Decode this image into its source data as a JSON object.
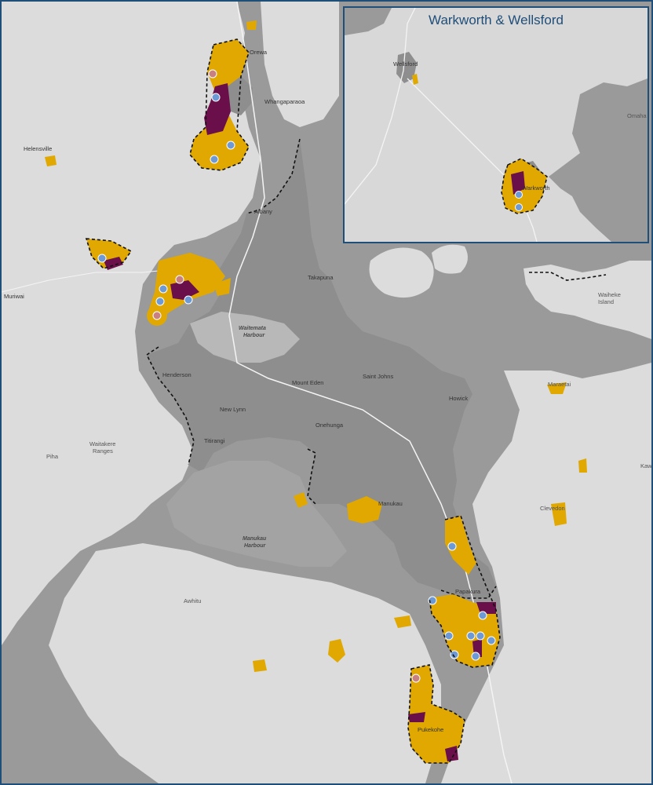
{
  "inset": {
    "title": "Warkworth & Wellsford",
    "places": {
      "wellsford": "Wellsford",
      "warkworth": "Warkworth",
      "omaha": "Omaha"
    }
  },
  "places": {
    "orewa": "Orewa",
    "whangaparaoa": "Whangaparaoa",
    "helensville": "Helensville",
    "albany": "Albany",
    "takapuna": "Takapuna",
    "muriwai": "Muriwai",
    "waitemata": "Waitemata\nHarbour",
    "henderson": "Henderson",
    "mount_eden": "Mount Eden",
    "saint_johns": "Saint Johns",
    "howick": "Howick",
    "new_lynn": "New Lynn",
    "onehunga": "Onehunga",
    "titirangi": "Titirangi",
    "waitakere": "Waitakere\nRanges",
    "piha": "Piha",
    "manukau_harbour": "Manukau\nHarbour",
    "manukau": "Manukau",
    "papakura": "Papakura",
    "awhitu": "Awhitu",
    "pukekohe": "Pukekohe",
    "clevedon": "Clevedon",
    "maraetai": "Maraetai",
    "waiheke": "Waiheke\nIsland",
    "kawakawa": "Kaw"
  },
  "colors": {
    "water": "#9a9a9a",
    "land": "#dcdcdc",
    "urban": "#8e8e8e",
    "yellow": "#e0a800",
    "purple": "#6b0f4a",
    "inset_border": "#1f4e79",
    "marker_blue": "#6d9ad4",
    "marker_red": "#c98080"
  }
}
